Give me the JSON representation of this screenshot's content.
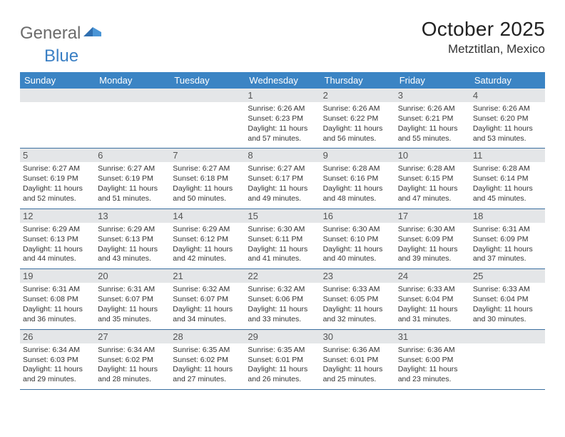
{
  "brand": {
    "part1": "General",
    "part2": "Blue"
  },
  "title": "October 2025",
  "location": "Metztitlan, Mexico",
  "colors": {
    "header_bg": "#3b84c4",
    "header_fg": "#ffffff",
    "daynum_bg": "#e4e6e8",
    "daynum_fg": "#555555",
    "rule": "#3b6fa0",
    "body_fg": "#333333",
    "page_bg": "#ffffff"
  },
  "typography": {
    "title_fontsize": 28,
    "location_fontsize": 17,
    "dayname_fontsize": 13,
    "daynum_fontsize": 13,
    "cell_fontsize": 10.5
  },
  "day_names": [
    "Sunday",
    "Monday",
    "Tuesday",
    "Wednesday",
    "Thursday",
    "Friday",
    "Saturday"
  ],
  "weeks": [
    [
      {
        "n": "",
        "lines": []
      },
      {
        "n": "",
        "lines": []
      },
      {
        "n": "",
        "lines": []
      },
      {
        "n": "1",
        "lines": [
          "Sunrise: 6:26 AM",
          "Sunset: 6:23 PM",
          "Daylight: 11 hours",
          "and 57 minutes."
        ]
      },
      {
        "n": "2",
        "lines": [
          "Sunrise: 6:26 AM",
          "Sunset: 6:22 PM",
          "Daylight: 11 hours",
          "and 56 minutes."
        ]
      },
      {
        "n": "3",
        "lines": [
          "Sunrise: 6:26 AM",
          "Sunset: 6:21 PM",
          "Daylight: 11 hours",
          "and 55 minutes."
        ]
      },
      {
        "n": "4",
        "lines": [
          "Sunrise: 6:26 AM",
          "Sunset: 6:20 PM",
          "Daylight: 11 hours",
          "and 53 minutes."
        ]
      }
    ],
    [
      {
        "n": "5",
        "lines": [
          "Sunrise: 6:27 AM",
          "Sunset: 6:19 PM",
          "Daylight: 11 hours",
          "and 52 minutes."
        ]
      },
      {
        "n": "6",
        "lines": [
          "Sunrise: 6:27 AM",
          "Sunset: 6:19 PM",
          "Daylight: 11 hours",
          "and 51 minutes."
        ]
      },
      {
        "n": "7",
        "lines": [
          "Sunrise: 6:27 AM",
          "Sunset: 6:18 PM",
          "Daylight: 11 hours",
          "and 50 minutes."
        ]
      },
      {
        "n": "8",
        "lines": [
          "Sunrise: 6:27 AM",
          "Sunset: 6:17 PM",
          "Daylight: 11 hours",
          "and 49 minutes."
        ]
      },
      {
        "n": "9",
        "lines": [
          "Sunrise: 6:28 AM",
          "Sunset: 6:16 PM",
          "Daylight: 11 hours",
          "and 48 minutes."
        ]
      },
      {
        "n": "10",
        "lines": [
          "Sunrise: 6:28 AM",
          "Sunset: 6:15 PM",
          "Daylight: 11 hours",
          "and 47 minutes."
        ]
      },
      {
        "n": "11",
        "lines": [
          "Sunrise: 6:28 AM",
          "Sunset: 6:14 PM",
          "Daylight: 11 hours",
          "and 45 minutes."
        ]
      }
    ],
    [
      {
        "n": "12",
        "lines": [
          "Sunrise: 6:29 AM",
          "Sunset: 6:13 PM",
          "Daylight: 11 hours",
          "and 44 minutes."
        ]
      },
      {
        "n": "13",
        "lines": [
          "Sunrise: 6:29 AM",
          "Sunset: 6:13 PM",
          "Daylight: 11 hours",
          "and 43 minutes."
        ]
      },
      {
        "n": "14",
        "lines": [
          "Sunrise: 6:29 AM",
          "Sunset: 6:12 PM",
          "Daylight: 11 hours",
          "and 42 minutes."
        ]
      },
      {
        "n": "15",
        "lines": [
          "Sunrise: 6:30 AM",
          "Sunset: 6:11 PM",
          "Daylight: 11 hours",
          "and 41 minutes."
        ]
      },
      {
        "n": "16",
        "lines": [
          "Sunrise: 6:30 AM",
          "Sunset: 6:10 PM",
          "Daylight: 11 hours",
          "and 40 minutes."
        ]
      },
      {
        "n": "17",
        "lines": [
          "Sunrise: 6:30 AM",
          "Sunset: 6:09 PM",
          "Daylight: 11 hours",
          "and 39 minutes."
        ]
      },
      {
        "n": "18",
        "lines": [
          "Sunrise: 6:31 AM",
          "Sunset: 6:09 PM",
          "Daylight: 11 hours",
          "and 37 minutes."
        ]
      }
    ],
    [
      {
        "n": "19",
        "lines": [
          "Sunrise: 6:31 AM",
          "Sunset: 6:08 PM",
          "Daylight: 11 hours",
          "and 36 minutes."
        ]
      },
      {
        "n": "20",
        "lines": [
          "Sunrise: 6:31 AM",
          "Sunset: 6:07 PM",
          "Daylight: 11 hours",
          "and 35 minutes."
        ]
      },
      {
        "n": "21",
        "lines": [
          "Sunrise: 6:32 AM",
          "Sunset: 6:07 PM",
          "Daylight: 11 hours",
          "and 34 minutes."
        ]
      },
      {
        "n": "22",
        "lines": [
          "Sunrise: 6:32 AM",
          "Sunset: 6:06 PM",
          "Daylight: 11 hours",
          "and 33 minutes."
        ]
      },
      {
        "n": "23",
        "lines": [
          "Sunrise: 6:33 AM",
          "Sunset: 6:05 PM",
          "Daylight: 11 hours",
          "and 32 minutes."
        ]
      },
      {
        "n": "24",
        "lines": [
          "Sunrise: 6:33 AM",
          "Sunset: 6:04 PM",
          "Daylight: 11 hours",
          "and 31 minutes."
        ]
      },
      {
        "n": "25",
        "lines": [
          "Sunrise: 6:33 AM",
          "Sunset: 6:04 PM",
          "Daylight: 11 hours",
          "and 30 minutes."
        ]
      }
    ],
    [
      {
        "n": "26",
        "lines": [
          "Sunrise: 6:34 AM",
          "Sunset: 6:03 PM",
          "Daylight: 11 hours",
          "and 29 minutes."
        ]
      },
      {
        "n": "27",
        "lines": [
          "Sunrise: 6:34 AM",
          "Sunset: 6:02 PM",
          "Daylight: 11 hours",
          "and 28 minutes."
        ]
      },
      {
        "n": "28",
        "lines": [
          "Sunrise: 6:35 AM",
          "Sunset: 6:02 PM",
          "Daylight: 11 hours",
          "and 27 minutes."
        ]
      },
      {
        "n": "29",
        "lines": [
          "Sunrise: 6:35 AM",
          "Sunset: 6:01 PM",
          "Daylight: 11 hours",
          "and 26 minutes."
        ]
      },
      {
        "n": "30",
        "lines": [
          "Sunrise: 6:36 AM",
          "Sunset: 6:01 PM",
          "Daylight: 11 hours",
          "and 25 minutes."
        ]
      },
      {
        "n": "31",
        "lines": [
          "Sunrise: 6:36 AM",
          "Sunset: 6:00 PM",
          "Daylight: 11 hours",
          "and 23 minutes."
        ]
      },
      {
        "n": "",
        "lines": []
      }
    ]
  ]
}
